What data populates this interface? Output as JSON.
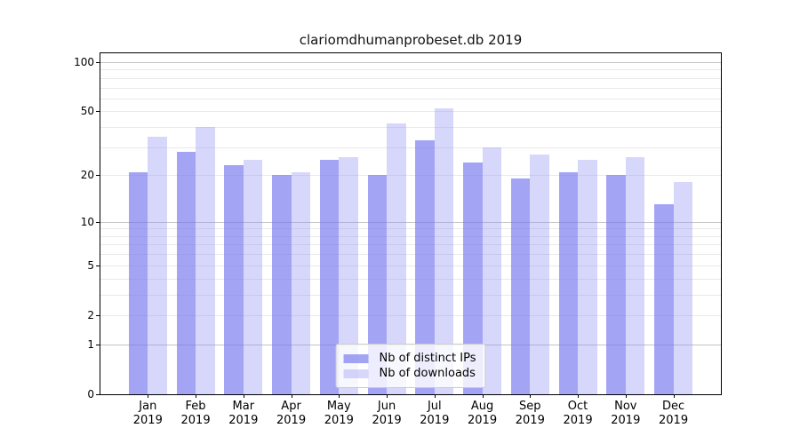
{
  "chart_data": {
    "type": "bar",
    "title": "clariomdhumanprobeset.db 2019",
    "y_scale": "log1p",
    "categories": [
      "Jan",
      "Feb",
      "Mar",
      "Apr",
      "May",
      "Jun",
      "Jul",
      "Aug",
      "Sep",
      "Oct",
      "Nov",
      "Dec"
    ],
    "category_year": "2019",
    "series": [
      {
        "name": "Nb of distinct IPs",
        "color": "rgba(120,120,240,0.67)",
        "values": [
          21,
          28,
          23,
          20,
          25,
          20,
          33,
          24,
          19,
          21,
          20,
          13
        ]
      },
      {
        "name": "Nb of downloads",
        "color": "rgba(150,150,245,0.38)",
        "values": [
          35,
          40,
          25,
          21,
          26,
          42,
          52,
          30,
          27,
          25,
          26,
          18
        ]
      }
    ],
    "ytick_labels": [
      100,
      50,
      20,
      10,
      5,
      2,
      1,
      0
    ],
    "ymajor_grid": [
      1,
      10,
      100
    ],
    "yminor_grid": [
      2,
      3,
      4,
      5,
      6,
      7,
      8,
      9,
      20,
      30,
      40,
      50,
      60,
      70,
      80,
      90
    ],
    "ylim": [
      0,
      113
    ],
    "grid": true,
    "legend_position": "lower center"
  },
  "colors": {
    "background": "#ffffff",
    "axis": "#000000",
    "grid_major": "#c3c3c3",
    "grid_minor": "#e9e9e9",
    "text": "#111111",
    "legend_border": "#cccccc"
  }
}
